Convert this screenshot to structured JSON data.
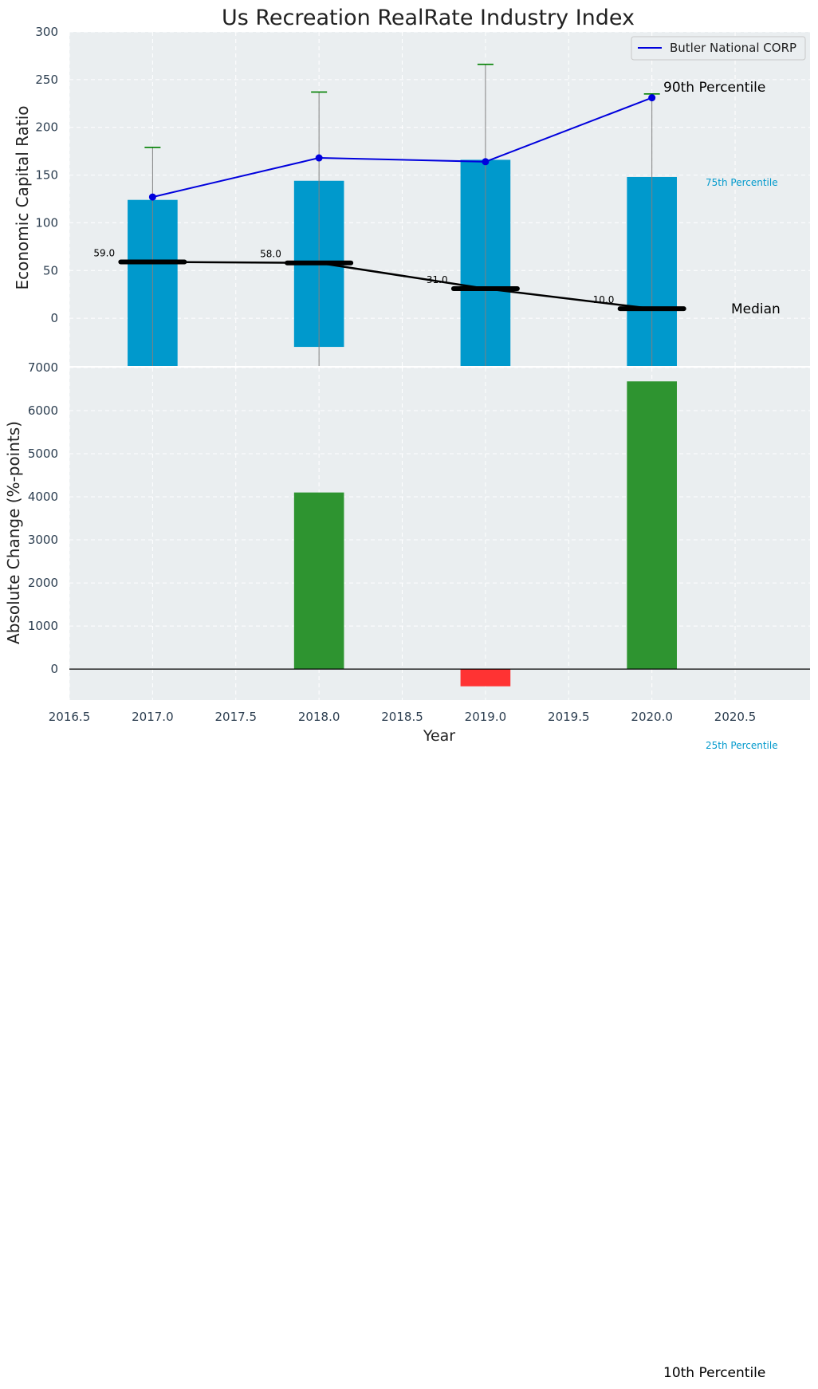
{
  "colors": {
    "plot_bg": "#eaeef0",
    "bar": "#0099cc",
    "line": "#0000dd",
    "median": "#000000",
    "whisker": "#808080",
    "cap": "#008000",
    "pos_change": "#2e9430",
    "neg_change": "#ff3333"
  },
  "chart_data": [
    {
      "type": "bar+line",
      "title": "Us Recreation RealRate Industry Index",
      "ylabel": "Economic Capital Ratio",
      "ylim": [
        -50,
        300
      ],
      "yticks": [
        0,
        50,
        100,
        150,
        200,
        250,
        300
      ],
      "x": [
        2017,
        2018,
        2019,
        2020
      ],
      "percentile_bars": {
        "bottom": [
          -50,
          -30,
          -50,
          -50
        ],
        "top": [
          124,
          144,
          166,
          148
        ]
      },
      "whiskers": {
        "low": [
          -50,
          -50,
          -50,
          -50
        ],
        "high": [
          179,
          237,
          266,
          235
        ]
      },
      "median": [
        59,
        58,
        31,
        10
      ],
      "median_labels": [
        "59.0",
        "58.0",
        "31.0",
        "10.0"
      ],
      "series": [
        {
          "name": "Butler National CORP",
          "values": [
            127,
            168,
            164,
            231
          ]
        }
      ],
      "annotations": {
        "p90": "90th Percentile",
        "p75": "75th Percentile",
        "median": "Median",
        "p25": "25th Percentile",
        "p10": "10th Percentile"
      },
      "legend": "top-right"
    },
    {
      "type": "bar",
      "ylabel": "Absolute Change (%-points)",
      "xlabel": "Year",
      "x": [
        2017,
        2018,
        2019,
        2020
      ],
      "values": [
        0,
        4100,
        -400,
        6680
      ],
      "ylim": [
        -720,
        7000
      ],
      "yticks": [
        0,
        1000,
        2000,
        3000,
        4000,
        5000,
        6000,
        7000
      ],
      "xlim": [
        2016.5,
        2020.95
      ],
      "xticks": [
        "2016.5",
        "2017.0",
        "2017.5",
        "2018.0",
        "2018.5",
        "2019.0",
        "2019.5",
        "2020.0",
        "2020.5"
      ]
    }
  ]
}
